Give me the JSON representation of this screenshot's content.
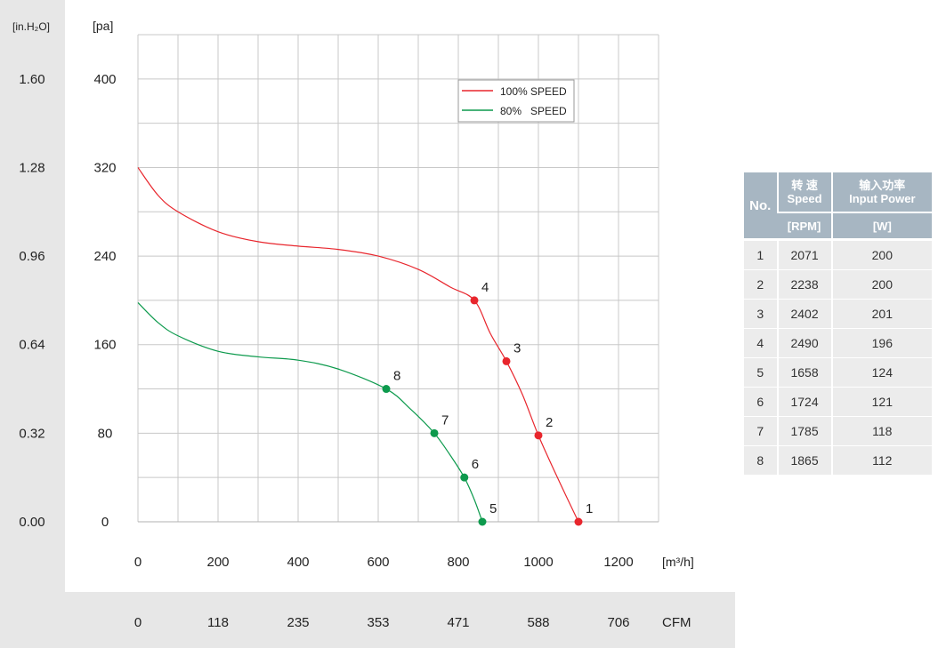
{
  "chart_data": {
    "type": "line",
    "x_unit": "[m³/h]",
    "y_unit": "[pa]",
    "y2_unit": "[in.H₂O]",
    "x2_unit": "CFM",
    "xlim": [
      0,
      1300
    ],
    "ylim": [
      0,
      440
    ],
    "x_ticks": [
      0,
      200,
      400,
      600,
      800,
      1000,
      1200
    ],
    "x_tick_labels": [
      "0",
      "200",
      "400",
      "600",
      "800",
      "1000",
      "1200"
    ],
    "x2_tick_labels": [
      "0",
      "118",
      "235",
      "353",
      "471",
      "588",
      "706"
    ],
    "y_ticks": [
      0,
      80,
      160,
      240,
      320,
      400
    ],
    "y_tick_labels": [
      "0",
      "80",
      "160",
      "240",
      "320",
      "400"
    ],
    "y2_tick_labels": [
      "0.00",
      "0.32",
      "0.64",
      "0.96",
      "1.28",
      "1.60"
    ],
    "grid": true,
    "legend_position": "top-right",
    "series": [
      {
        "name": "100% SPEED",
        "color": "#e8262d",
        "x": [
          0,
          50,
          100,
          200,
          300,
          400,
          500,
          600,
          700,
          780,
          840,
          880,
          920,
          960,
          1000,
          1050,
          1100
        ],
        "y": [
          320,
          295,
          280,
          262,
          253,
          249,
          246,
          240,
          228,
          212,
          200,
          170,
          145,
          115,
          78,
          38,
          0
        ],
        "points": [
          {
            "label": "1",
            "x": 1100,
            "y": 0
          },
          {
            "label": "2",
            "x": 1000,
            "y": 78
          },
          {
            "label": "3",
            "x": 920,
            "y": 145
          },
          {
            "label": "4",
            "x": 840,
            "y": 200
          }
        ]
      },
      {
        "name": "80%   SPEED",
        "color": "#0d9a4d",
        "x": [
          0,
          50,
          100,
          200,
          300,
          400,
          500,
          620,
          680,
          740,
          780,
          815,
          840,
          860
        ],
        "y": [
          198,
          180,
          168,
          154,
          149,
          146,
          138,
          120,
          102,
          80,
          60,
          40,
          20,
          0
        ],
        "points": [
          {
            "label": "5",
            "x": 860,
            "y": 0
          },
          {
            "label": "6",
            "x": 815,
            "y": 40
          },
          {
            "label": "7",
            "x": 740,
            "y": 80
          },
          {
            "label": "8",
            "x": 620,
            "y": 120
          }
        ]
      }
    ]
  },
  "table": {
    "col_no": "No.",
    "col_speed_cn": "转 速",
    "col_speed_en": "Speed",
    "col_speed_unit": "[RPM]",
    "col_power_cn": "输入功率",
    "col_power_en": "Input Power",
    "col_power_unit": "[W]",
    "rows": [
      {
        "no": "1",
        "speed": "2071",
        "power": "200"
      },
      {
        "no": "2",
        "speed": "2238",
        "power": "200"
      },
      {
        "no": "3",
        "speed": "2402",
        "power": "201"
      },
      {
        "no": "4",
        "speed": "2490",
        "power": "196"
      },
      {
        "no": "5",
        "speed": "1658",
        "power": "124"
      },
      {
        "no": "6",
        "speed": "1724",
        "power": "121"
      },
      {
        "no": "7",
        "speed": "1785",
        "power": "118"
      },
      {
        "no": "8",
        "speed": "1865",
        "power": "112"
      }
    ]
  }
}
